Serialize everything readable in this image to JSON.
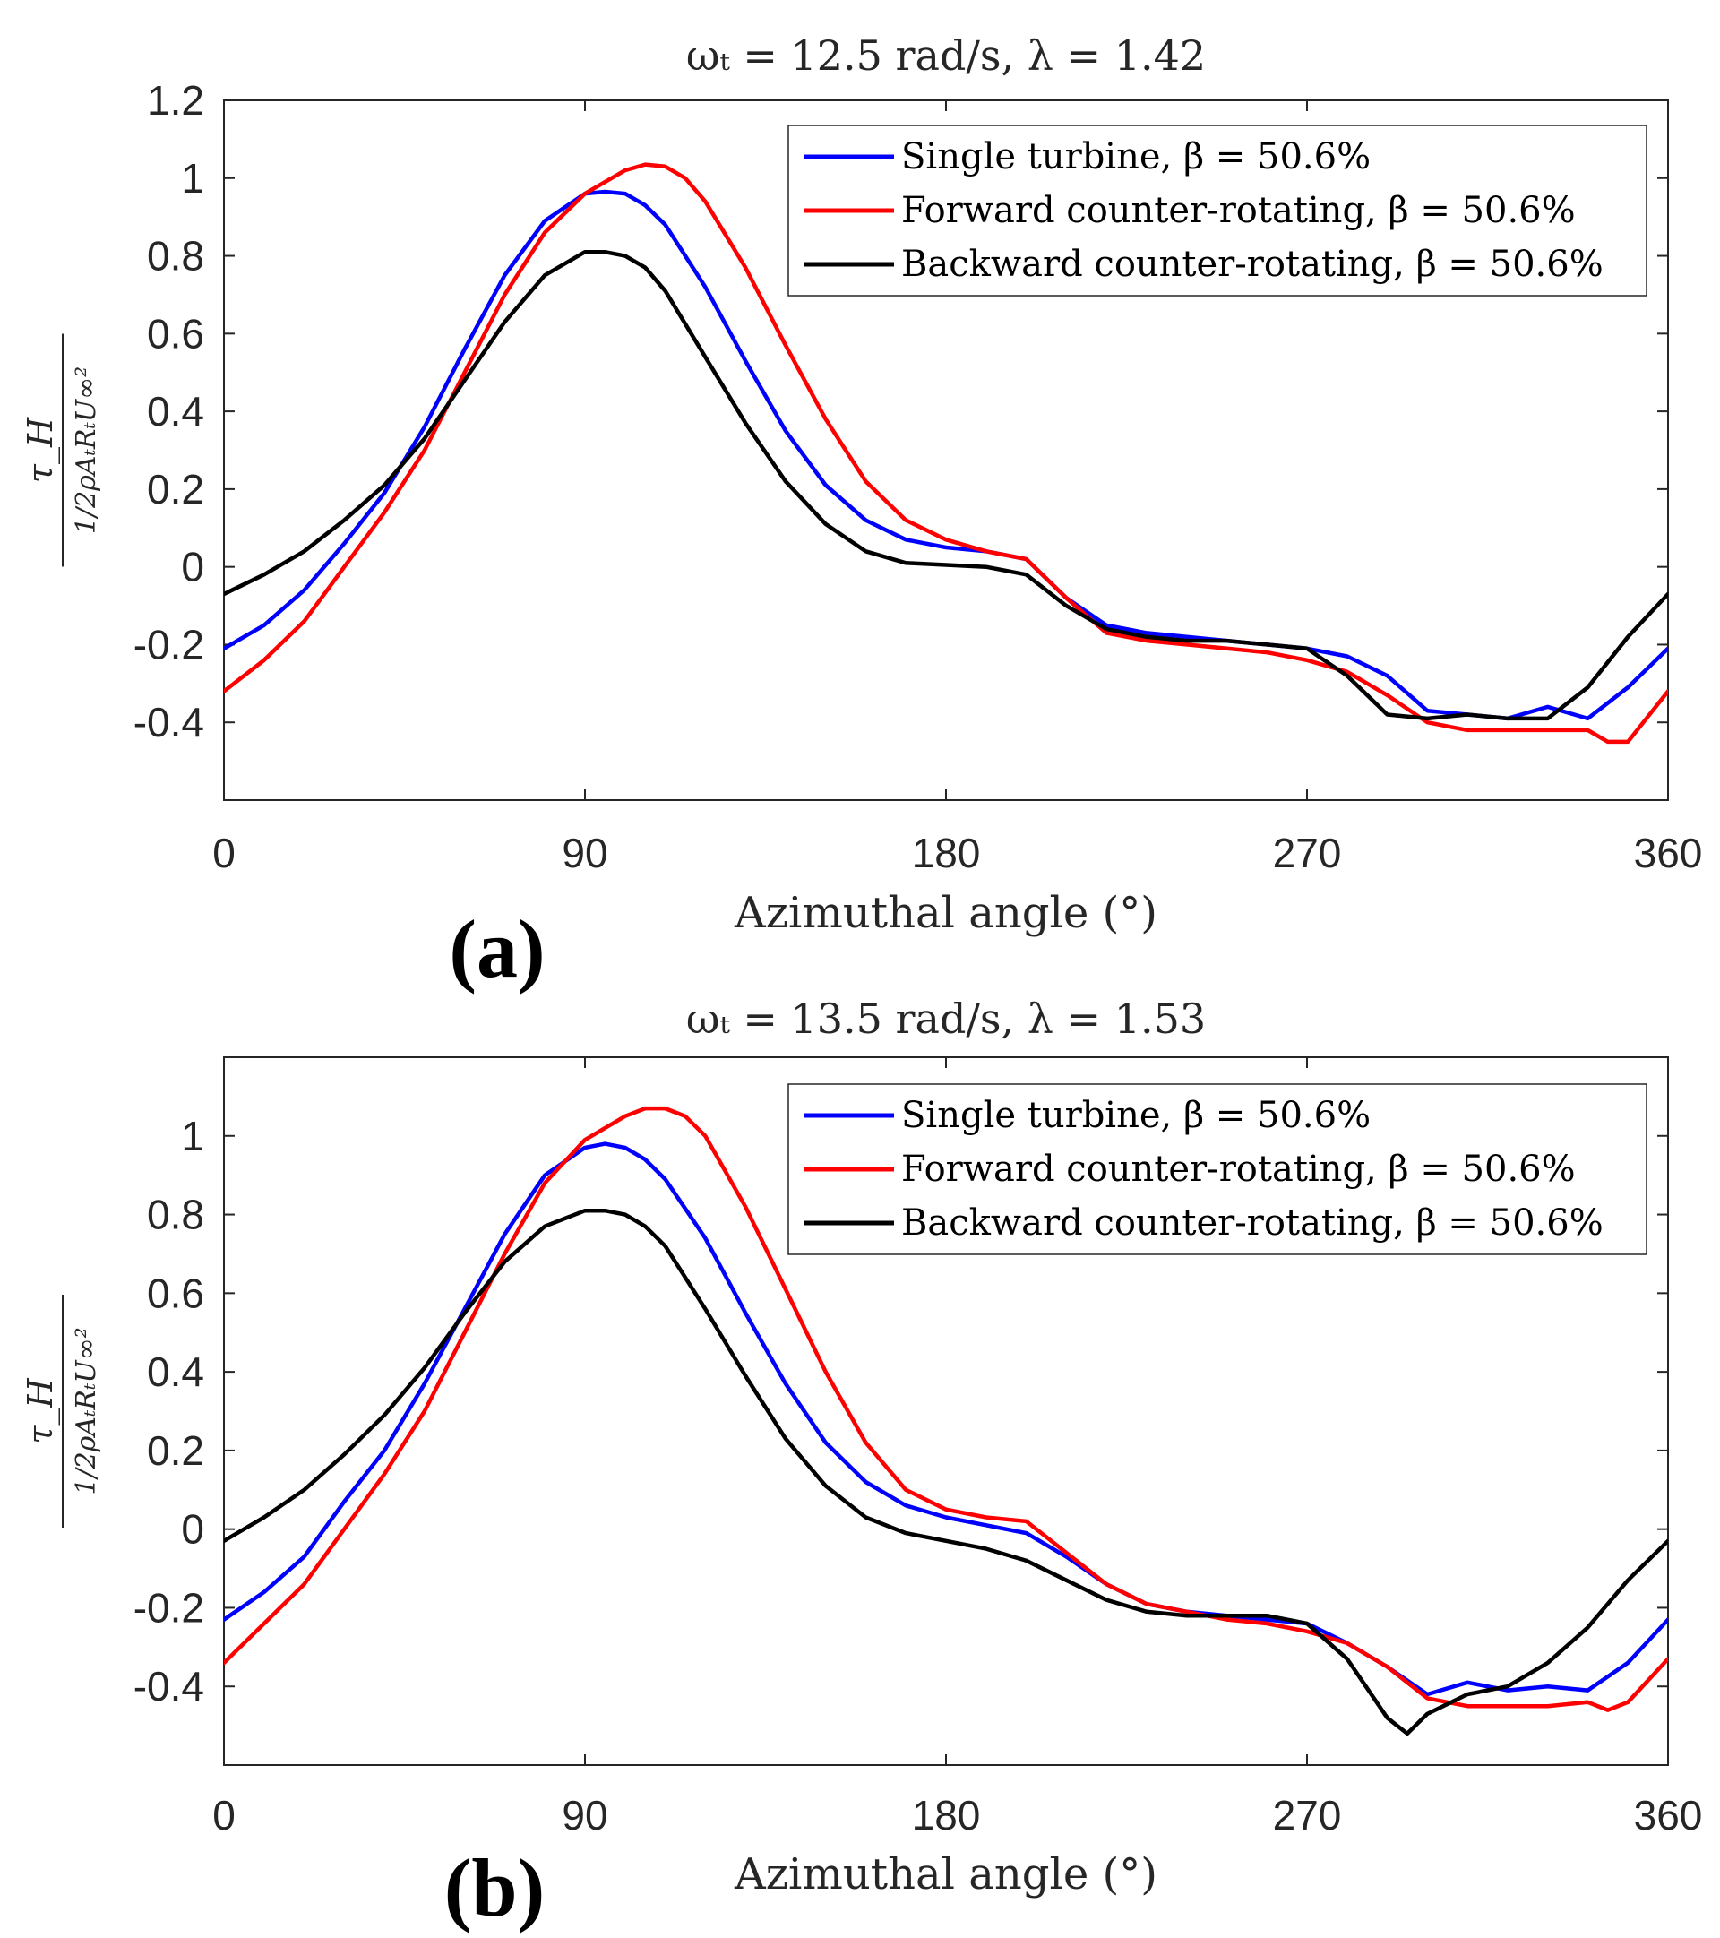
{
  "chart_data": [
    {
      "type": "line",
      "panel_label": "(a)",
      "title": "ωₜ = 12.5 rad/s, λ = 1.42",
      "xlabel": "Azimuthal angle (°)",
      "ylabel": {
        "numerator": "τ_H",
        "denominator": "1/2ρAₜRₜU∞²"
      },
      "xlim": [
        0,
        360
      ],
      "ylim": [
        -0.6,
        1.2
      ],
      "xticks": [
        0,
        90,
        180,
        270,
        360
      ],
      "yticks": [
        -0.4,
        -0.2,
        0,
        0.2,
        0.4,
        0.6,
        0.8,
        1,
        1.2
      ],
      "ytick_labels": [
        "-0.4",
        "-0.2",
        "0",
        "0.2",
        "0.4",
        "0.6",
        "0.8",
        "1",
        "1.2"
      ],
      "legend_position": "top-right",
      "series": [
        {
          "name": "Single turbine, β = 50.6%",
          "color": "#0000ff",
          "x": [
            0,
            10,
            20,
            30,
            40,
            50,
            60,
            70,
            80,
            90,
            95,
            100,
            105,
            110,
            120,
            130,
            140,
            150,
            160,
            170,
            180,
            190,
            200,
            210,
            220,
            230,
            240,
            250,
            260,
            270,
            280,
            290,
            300,
            310,
            320,
            330,
            340,
            350,
            360
          ],
          "values": [
            -0.21,
            -0.15,
            -0.06,
            0.06,
            0.19,
            0.36,
            0.56,
            0.75,
            0.89,
            0.96,
            0.965,
            0.96,
            0.93,
            0.88,
            0.72,
            0.53,
            0.35,
            0.21,
            0.12,
            0.07,
            0.05,
            0.04,
            0.02,
            -0.08,
            -0.15,
            -0.17,
            -0.18,
            -0.19,
            -0.2,
            -0.21,
            -0.23,
            -0.28,
            -0.37,
            -0.38,
            -0.39,
            -0.36,
            -0.39,
            -0.31,
            -0.21
          ]
        },
        {
          "name": "Forward counter-rotating, β = 50.6%",
          "color": "#ff0000",
          "x": [
            0,
            10,
            20,
            30,
            40,
            50,
            60,
            70,
            80,
            90,
            100,
            105,
            110,
            115,
            120,
            130,
            140,
            150,
            160,
            170,
            180,
            190,
            200,
            210,
            220,
            230,
            240,
            250,
            260,
            270,
            280,
            290,
            300,
            310,
            320,
            330,
            340,
            345,
            350,
            360
          ],
          "values": [
            -0.32,
            -0.24,
            -0.14,
            0.0,
            0.14,
            0.3,
            0.5,
            0.7,
            0.86,
            0.96,
            1.02,
            1.035,
            1.03,
            1.0,
            0.94,
            0.77,
            0.57,
            0.38,
            0.22,
            0.12,
            0.07,
            0.04,
            0.02,
            -0.08,
            -0.17,
            -0.19,
            -0.2,
            -0.21,
            -0.22,
            -0.24,
            -0.27,
            -0.33,
            -0.4,
            -0.42,
            -0.42,
            -0.42,
            -0.42,
            -0.45,
            -0.45,
            -0.32
          ]
        },
        {
          "name": "Backward counter-rotating, β = 50.6%",
          "color": "#000000",
          "x": [
            0,
            10,
            20,
            30,
            40,
            50,
            60,
            70,
            80,
            90,
            95,
            100,
            105,
            110,
            120,
            130,
            140,
            150,
            160,
            170,
            180,
            190,
            200,
            210,
            220,
            230,
            240,
            250,
            260,
            270,
            280,
            290,
            300,
            310,
            320,
            330,
            340,
            350,
            360
          ],
          "values": [
            -0.07,
            -0.02,
            0.04,
            0.12,
            0.21,
            0.33,
            0.48,
            0.63,
            0.75,
            0.81,
            0.81,
            0.8,
            0.77,
            0.71,
            0.54,
            0.37,
            0.22,
            0.11,
            0.04,
            0.01,
            0.005,
            0.0,
            -0.02,
            -0.1,
            -0.16,
            -0.18,
            -0.19,
            -0.19,
            -0.2,
            -0.21,
            -0.28,
            -0.38,
            -0.39,
            -0.38,
            -0.39,
            -0.39,
            -0.31,
            -0.18,
            -0.07
          ]
        }
      ]
    },
    {
      "type": "line",
      "panel_label": "(b)",
      "title": "ωₜ = 13.5 rad/s, λ = 1.53",
      "xlabel": "Azimuthal angle (°)",
      "ylabel": {
        "numerator": "τ_H",
        "denominator": "1/2ρAₜRₜU∞²"
      },
      "xlim": [
        0,
        360
      ],
      "ylim": [
        -0.6,
        1.2
      ],
      "xticks": [
        0,
        90,
        180,
        270,
        360
      ],
      "yticks": [
        -0.4,
        -0.2,
        0,
        0.2,
        0.4,
        0.6,
        0.8,
        1
      ],
      "ytick_labels": [
        "-0.4",
        "-0.2",
        "0",
        "0.2",
        "0.4",
        "0.6",
        "0.8",
        "1"
      ],
      "legend_position": "top-right",
      "series": [
        {
          "name": "Single turbine, β = 50.6%",
          "color": "#0000ff",
          "x": [
            0,
            10,
            20,
            30,
            40,
            50,
            60,
            70,
            80,
            90,
            95,
            100,
            105,
            110,
            120,
            130,
            140,
            150,
            160,
            170,
            180,
            190,
            200,
            210,
            220,
            230,
            240,
            250,
            260,
            270,
            280,
            290,
            300,
            310,
            320,
            330,
            340,
            350,
            360
          ],
          "values": [
            -0.23,
            -0.16,
            -0.07,
            0.07,
            0.2,
            0.37,
            0.56,
            0.75,
            0.9,
            0.97,
            0.98,
            0.97,
            0.94,
            0.89,
            0.74,
            0.55,
            0.37,
            0.22,
            0.12,
            0.06,
            0.03,
            0.01,
            -0.01,
            -0.07,
            -0.14,
            -0.19,
            -0.21,
            -0.22,
            -0.23,
            -0.24,
            -0.29,
            -0.35,
            -0.42,
            -0.39,
            -0.41,
            -0.4,
            -0.41,
            -0.34,
            -0.23
          ]
        },
        {
          "name": "Forward counter-rotating, β = 50.6%",
          "color": "#ff0000",
          "x": [
            0,
            10,
            20,
            30,
            40,
            50,
            60,
            70,
            80,
            90,
            100,
            105,
            110,
            115,
            120,
            130,
            140,
            150,
            160,
            170,
            180,
            190,
            200,
            210,
            220,
            230,
            240,
            250,
            260,
            270,
            280,
            290,
            300,
            310,
            320,
            330,
            340,
            345,
            350,
            360
          ],
          "values": [
            -0.34,
            -0.24,
            -0.14,
            0.0,
            0.14,
            0.3,
            0.5,
            0.7,
            0.88,
            0.99,
            1.05,
            1.07,
            1.07,
            1.05,
            1.0,
            0.82,
            0.61,
            0.4,
            0.22,
            0.1,
            0.05,
            0.03,
            0.02,
            -0.06,
            -0.14,
            -0.19,
            -0.21,
            -0.23,
            -0.24,
            -0.26,
            -0.29,
            -0.35,
            -0.43,
            -0.45,
            -0.45,
            -0.45,
            -0.44,
            -0.46,
            -0.44,
            -0.33
          ]
        },
        {
          "name": "Backward counter-rotating, β = 50.6%",
          "color": "#000000",
          "x": [
            0,
            10,
            20,
            30,
            40,
            50,
            60,
            70,
            80,
            90,
            95,
            100,
            105,
            110,
            120,
            130,
            140,
            150,
            160,
            170,
            180,
            190,
            200,
            210,
            220,
            230,
            240,
            250,
            260,
            270,
            280,
            290,
            295,
            300,
            310,
            320,
            330,
            340,
            350,
            360
          ],
          "values": [
            -0.03,
            0.03,
            0.1,
            0.19,
            0.29,
            0.41,
            0.55,
            0.68,
            0.77,
            0.81,
            0.81,
            0.8,
            0.77,
            0.72,
            0.56,
            0.39,
            0.23,
            0.11,
            0.03,
            -0.01,
            -0.03,
            -0.05,
            -0.08,
            -0.13,
            -0.18,
            -0.21,
            -0.22,
            -0.22,
            -0.22,
            -0.24,
            -0.33,
            -0.48,
            -0.52,
            -0.47,
            -0.42,
            -0.4,
            -0.34,
            -0.25,
            -0.13,
            -0.03
          ]
        }
      ]
    }
  ]
}
